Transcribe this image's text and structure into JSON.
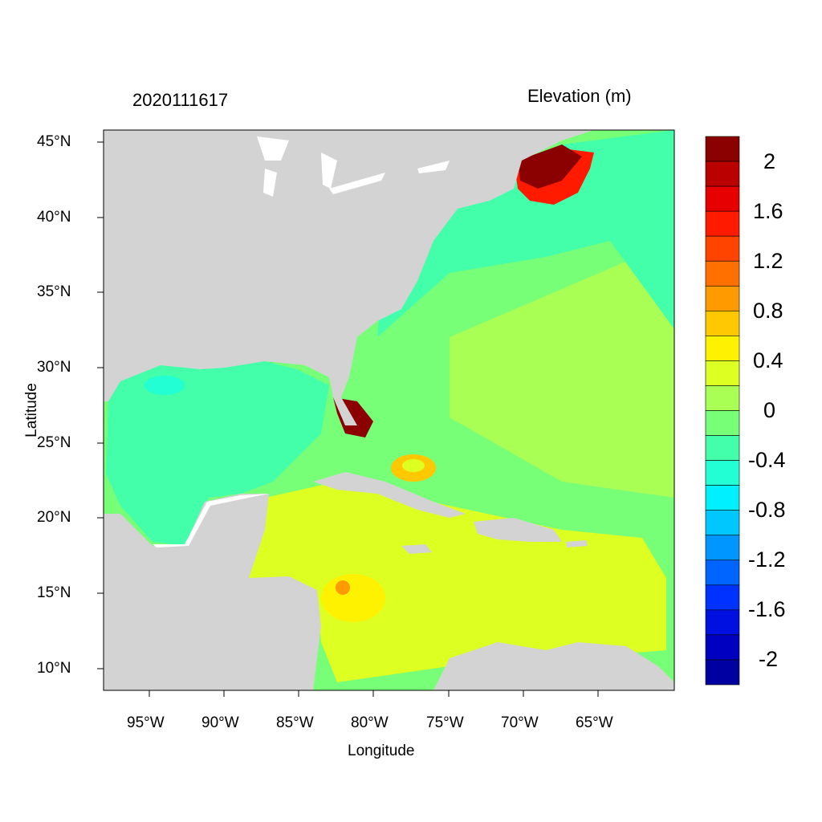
{
  "titles": {
    "left": "2020111617",
    "right": "Elevation (m)"
  },
  "axes": {
    "xlabel": "Longitude",
    "ylabel": "Latitude",
    "x_ticks": [
      "95°W",
      "90°W",
      "85°W",
      "80°W",
      "75°W",
      "70°W",
      "65°W"
    ],
    "y_ticks": [
      "45°N",
      "40°N",
      "35°N",
      "30°N",
      "25°N",
      "20°N",
      "15°N",
      "10°N"
    ],
    "x_range": [
      -98,
      -60
    ],
    "y_range": [
      8.5,
      46
    ]
  },
  "colorbar": {
    "labels": [
      "2",
      "1.6",
      "1.2",
      "0.8",
      "0.4",
      "0",
      "-0.4",
      "-0.8",
      "-1.2",
      "-1.6",
      "-2"
    ],
    "colors": [
      "#8b0000",
      "#bb0000",
      "#e60000",
      "#ff1a00",
      "#ff4400",
      "#ff7000",
      "#ff9a00",
      "#ffc800",
      "#fff200",
      "#ddff22",
      "#aaff55",
      "#77ff77",
      "#44ffaa",
      "#22ffd4",
      "#00f0ff",
      "#00c8ff",
      "#0096ff",
      "#0064ff",
      "#0032ff",
      "#0010e0",
      "#0000c0",
      "#0000a0"
    ]
  },
  "land_color": "#d3d3d3"
}
